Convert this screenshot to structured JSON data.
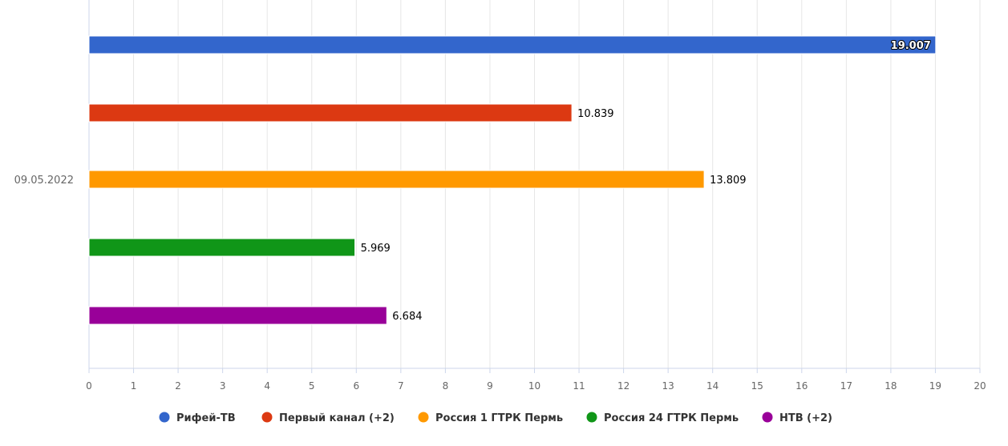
{
  "chart_data": {
    "type": "bar",
    "orientation": "horizontal",
    "categories": [
      "09.05.2022"
    ],
    "series": [
      {
        "name": "Рифей-ТВ",
        "values": [
          19.007
        ],
        "label": "19.007",
        "color": "#3366cc"
      },
      {
        "name": "Первый канал (+2)",
        "values": [
          10.839
        ],
        "label": "10.839",
        "color": "#dc3912"
      },
      {
        "name": "Россия 1 ГТРК Пермь",
        "values": [
          13.809
        ],
        "label": "13.809",
        "color": "#ff9900"
      },
      {
        "name": "Россия 24 ГТРК Пермь",
        "values": [
          5.969
        ],
        "label": "5.969",
        "color": "#109618"
      },
      {
        "name": "НТВ (+2)",
        "values": [
          6.684
        ],
        "label": "6.684",
        "color": "#990099"
      }
    ],
    "xlim": [
      0,
      20
    ],
    "xticks": [
      "0",
      "1",
      "2",
      "3",
      "4",
      "5",
      "6",
      "7",
      "8",
      "9",
      "10",
      "11",
      "12",
      "13",
      "14",
      "15",
      "16",
      "17",
      "18",
      "19",
      "20"
    ],
    "grid": true,
    "legend": "bottom",
    "title": "",
    "xlabel": "",
    "ylabel": ""
  }
}
